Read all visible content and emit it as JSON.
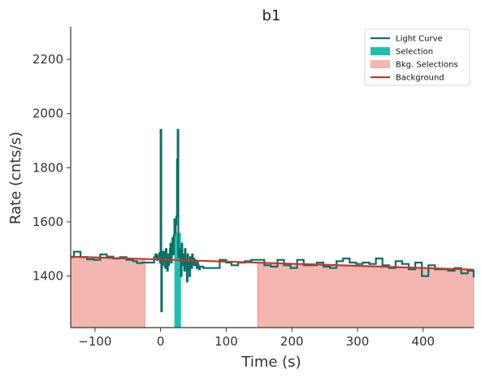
{
  "chart_data": {
    "type": "line",
    "title": "b1",
    "xlabel": "Time (s)",
    "ylabel": "Rate (cnts/s)",
    "xlim": [
      -137,
      477
    ],
    "ylim": [
      1210,
      2320
    ],
    "xticks": [
      -100,
      0,
      100,
      200,
      300,
      400
    ],
    "xtick_labels": [
      "−100",
      "0",
      "100",
      "200",
      "300",
      "400"
    ],
    "yticks": [
      1400,
      1600,
      1800,
      2000,
      2200
    ],
    "ytick_labels": [
      "1400",
      "1600",
      "1800",
      "2000",
      "2200"
    ],
    "grid": false,
    "legend_position": "top-right",
    "legend": [
      {
        "label": "Light Curve",
        "kind": "line",
        "color": "#0b7065"
      },
      {
        "label": "Selection",
        "kind": "patch",
        "color": "#1fbfb0"
      },
      {
        "label": "Bkg. Selections",
        "kind": "patch",
        "color": "#f4b6b0"
      },
      {
        "label": "Background",
        "kind": "line",
        "color": "#c0392b"
      }
    ],
    "background_line": {
      "x": [
        -137,
        477
      ],
      "y": [
        1472,
        1424
      ]
    },
    "bkg_selections": [
      [
        -137,
        -24
      ],
      [
        148,
        477
      ]
    ],
    "selection": [
      21,
      31
    ],
    "light_curve": {
      "x": [
        -137,
        -132,
        -122,
        -112,
        -102,
        -92,
        -82,
        -72,
        -62,
        -52,
        -42,
        -36,
        -28,
        -20,
        -10,
        -8,
        -6,
        -4,
        -2,
        -1,
        0,
        1,
        2,
        3,
        4,
        5,
        6,
        7,
        8,
        9,
        10,
        11,
        12,
        13,
        14,
        15,
        16,
        17,
        18,
        19,
        20,
        21,
        22,
        23,
        24,
        25,
        26,
        27,
        28,
        29,
        30,
        31,
        32,
        33,
        34,
        35,
        36,
        37,
        38,
        39,
        40,
        41,
        42,
        43,
        44,
        45,
        46,
        47,
        48,
        49,
        50,
        51,
        52,
        53,
        54,
        55,
        56,
        57,
        58,
        60,
        65,
        75,
        90,
        100,
        108,
        118,
        128,
        138,
        148,
        158,
        168,
        178,
        188,
        198,
        208,
        218,
        228,
        238,
        248,
        258,
        268,
        278,
        288,
        298,
        308,
        318,
        328,
        338,
        348,
        358,
        368,
        378,
        388,
        398,
        408,
        418,
        428,
        438,
        448,
        458,
        468,
        477
      ],
      "y": [
        1470,
        1490,
        1470,
        1462,
        1460,
        1480,
        1472,
        1465,
        1470,
        1460,
        1455,
        1448,
        1450,
        1450,
        1470,
        1480,
        1460,
        1475,
        1485,
        1450,
        1940,
        1270,
        1490,
        1440,
        1470,
        1490,
        1455,
        1430,
        1500,
        1470,
        1420,
        1480,
        1440,
        1460,
        1500,
        1520,
        1450,
        1510,
        1540,
        1480,
        1550,
        1610,
        1560,
        1590,
        1620,
        1830,
        1940,
        1470,
        1500,
        1490,
        1455,
        1400,
        1520,
        1470,
        1440,
        1480,
        1420,
        1500,
        1430,
        1460,
        1380,
        1480,
        1450,
        1420,
        1400,
        1470,
        1445,
        1430,
        1480,
        1445,
        1465,
        1440,
        1460,
        1445,
        1440,
        1430,
        1455,
        1440,
        1425,
        1435,
        1430,
        1430,
        1460,
        1450,
        1440,
        1450,
        1455,
        1460,
        1460,
        1440,
        1435,
        1460,
        1440,
        1430,
        1460,
        1440,
        1440,
        1450,
        1435,
        1430,
        1455,
        1465,
        1450,
        1445,
        1450,
        1445,
        1465,
        1440,
        1430,
        1455,
        1445,
        1425,
        1450,
        1400,
        1440,
        1425,
        1425,
        1420,
        1430,
        1410,
        1420,
        1395
      ]
    }
  }
}
